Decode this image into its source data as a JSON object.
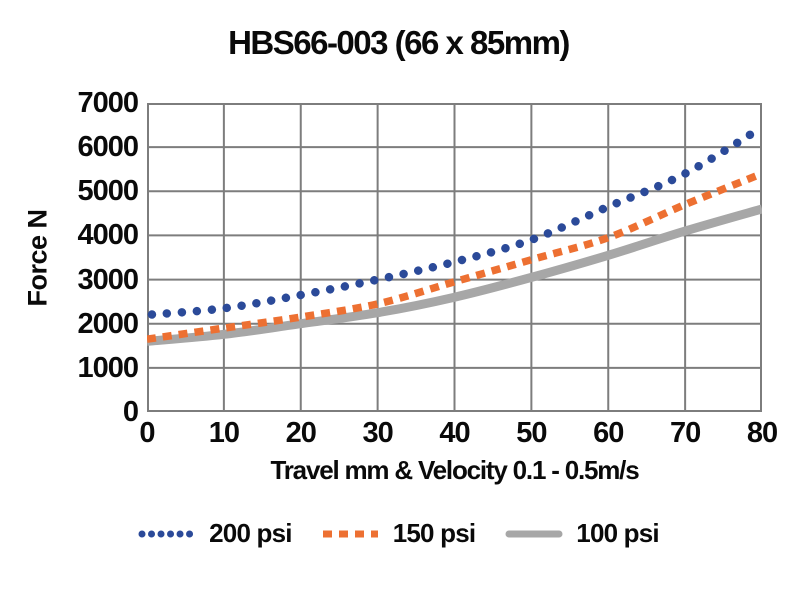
{
  "chart_data": {
    "type": "line",
    "title": "HBS66-003 (66 x 85mm)",
    "xlabel": "Travel mm & Velocity 0.1 - 0.5m/s",
    "ylabel": "Force N",
    "xlim": [
      0,
      80
    ],
    "ylim": [
      0,
      7000
    ],
    "xticks": [
      0,
      10,
      20,
      30,
      40,
      50,
      60,
      70,
      80
    ],
    "yticks": [
      0,
      1000,
      2000,
      3000,
      4000,
      5000,
      6000,
      7000
    ],
    "grid": true,
    "legend_position": "bottom",
    "x": [
      0,
      10,
      20,
      30,
      40,
      50,
      60,
      70,
      80
    ],
    "series": [
      {
        "name": "200 psi",
        "style": "dotted",
        "color": "#2b4a99",
        "values": [
          2200,
          2350,
          2650,
          3000,
          3400,
          3900,
          4650,
          5400,
          6450
        ]
      },
      {
        "name": "150 psi",
        "style": "dashed",
        "color": "#ed7032",
        "values": [
          1650,
          1900,
          2150,
          2450,
          2950,
          3450,
          3950,
          4700,
          5400
        ]
      },
      {
        "name": "100 psi",
        "style": "solid",
        "color": "#a7a7a7",
        "values": [
          1600,
          1760,
          2000,
          2250,
          2600,
          3050,
          3550,
          4100,
          4600
        ]
      }
    ],
    "colors": {
      "grid": "#7d7d7d",
      "text": "#0a0a0a",
      "background": "#ffffff"
    }
  }
}
